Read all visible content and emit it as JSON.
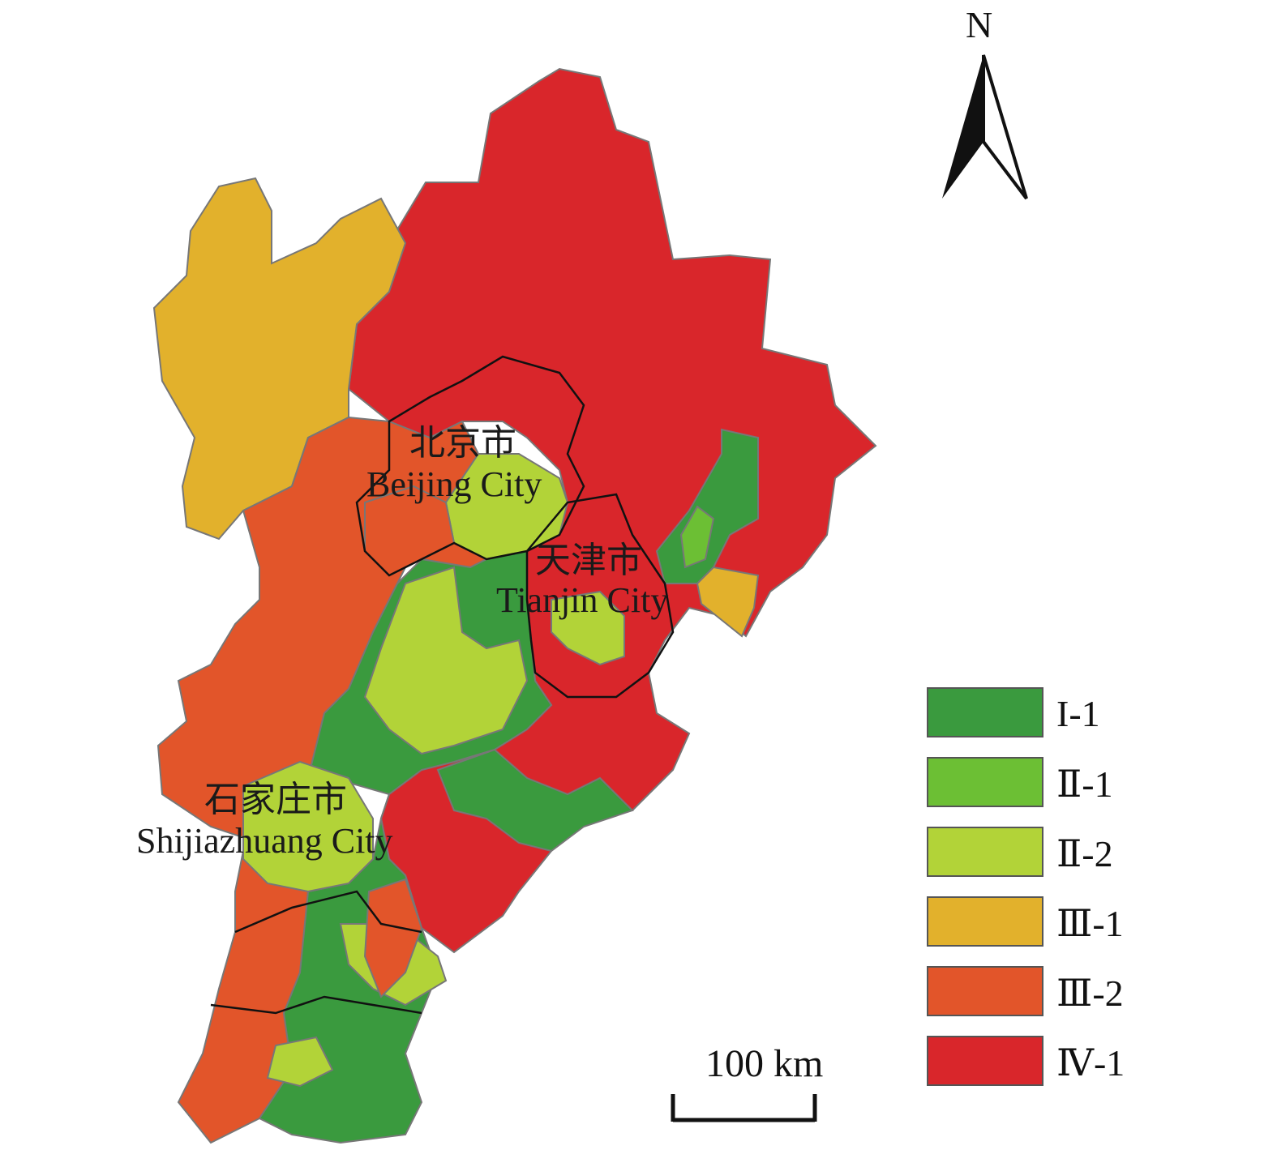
{
  "map": {
    "north_label": "N",
    "scale_label": "100 km",
    "cities": [
      {
        "name_cn": "北京市",
        "name_en": "Beijing City"
      },
      {
        "name_cn": "天津市",
        "name_en": "Tianjin City"
      },
      {
        "name_cn": "石家庄市",
        "name_en": "Shijiazhuang City"
      }
    ],
    "legend": [
      {
        "label": "I-1",
        "color": "#3a9a3e"
      },
      {
        "label": "Ⅱ-1",
        "color": "#6cbf34"
      },
      {
        "label": "Ⅱ-2",
        "color": "#b2d338"
      },
      {
        "label": "Ⅲ-1",
        "color": "#e2b12c"
      },
      {
        "label": "Ⅲ-2",
        "color": "#e2552a"
      },
      {
        "label": "Ⅳ-1",
        "color": "#d9262b"
      }
    ]
  }
}
